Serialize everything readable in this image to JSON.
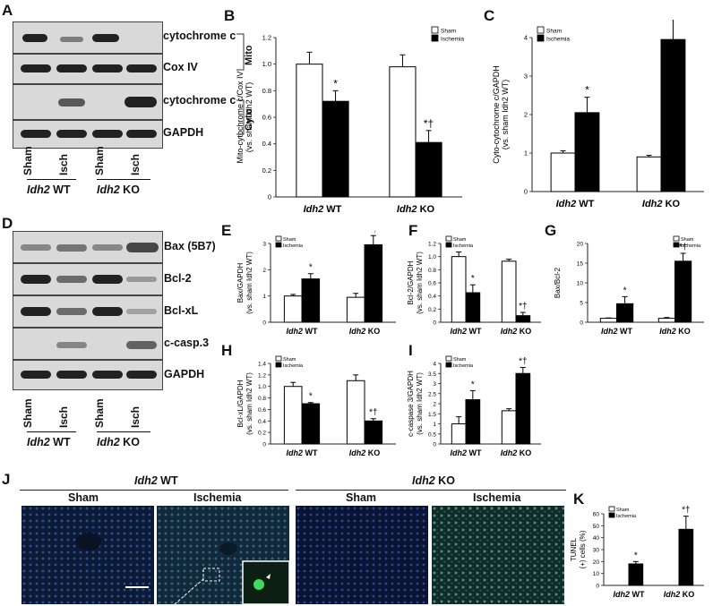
{
  "panels": {
    "A": "A",
    "B": "B",
    "C": "C",
    "D": "D",
    "E": "E",
    "F": "F",
    "G": "G",
    "H": "H",
    "I": "I",
    "J": "J",
    "K": "K"
  },
  "blot_a": {
    "rows": [
      "cytochrome c",
      "Cox IV",
      "cytochrome c",
      "GAPDH"
    ],
    "brackets": [
      "Mito",
      "Cyto"
    ],
    "lanes": [
      "Sham",
      "Isch",
      "Sham",
      "Isch"
    ],
    "groups": [
      "Idh2 WT",
      "Idh2 KO"
    ]
  },
  "blot_d": {
    "rows": [
      "Bax (5B7)",
      "Bcl-2",
      "Bcl-xL",
      "c-casp.3",
      "GAPDH"
    ],
    "lanes": [
      "Sham",
      "Isch",
      "Sham",
      "Isch"
    ],
    "groups": [
      "Idh2 WT",
      "Idh2 KO"
    ]
  },
  "micro": {
    "group_titles": [
      "Idh2 WT",
      "Idh2 KO"
    ],
    "columns": [
      "Sham",
      "Ischemia",
      "Sham",
      "Ischemia"
    ]
  },
  "chart_data": [
    {
      "panel": "B",
      "type": "bar",
      "categories": [
        "Idh2 WT",
        "Idh2 KO"
      ],
      "series": [
        {
          "name": "Sham",
          "values": [
            1.0,
            0.98
          ],
          "err": [
            0.09,
            0.09
          ]
        },
        {
          "name": "Ischemia",
          "values": [
            0.72,
            0.41
          ],
          "err": [
            0.08,
            0.09
          ]
        }
      ],
      "ylabel": "Mito-cytochrome c/Cox IV (vs. sham Idh2 WT)",
      "ylim": [
        0,
        1.2
      ],
      "yticks": [
        0,
        0.2,
        0.4,
        0.6,
        0.8,
        1.0,
        1.2
      ],
      "annotations": [
        "*",
        "*†"
      ],
      "legend": "top-right"
    },
    {
      "panel": "C",
      "type": "bar",
      "categories": [
        "Idh2 WT",
        "Idh2 KO"
      ],
      "series": [
        {
          "name": "Sham",
          "values": [
            1.0,
            0.9
          ],
          "err": [
            0.06,
            0.04
          ]
        },
        {
          "name": "Ischemia",
          "values": [
            2.05,
            3.95
          ],
          "err": [
            0.4,
            0.55
          ]
        }
      ],
      "ylabel": "Cyto-cytochrome c/GAPDH (vs. sham Idh2 WT)",
      "ylim": [
        0,
        4
      ],
      "yticks": [
        0,
        1,
        2,
        3,
        4
      ],
      "annotations": [
        "*",
        "*†"
      ],
      "legend": "top-left"
    },
    {
      "panel": "E",
      "type": "bar",
      "categories": [
        "Idh2 WT",
        "Idh2 KO"
      ],
      "series": [
        {
          "name": "Sham",
          "values": [
            1.0,
            0.95
          ],
          "err": [
            0.06,
            0.15
          ]
        },
        {
          "name": "Ischemia",
          "values": [
            1.65,
            2.95
          ],
          "err": [
            0.2,
            0.35
          ]
        }
      ],
      "ylabel": "Bax/GAPDH (vs. sham Idh2 WT)",
      "ylim": [
        0,
        3
      ],
      "yticks": [
        0,
        1,
        2,
        3
      ],
      "annotations": [
        "*",
        "*†"
      ],
      "legend": "top-left"
    },
    {
      "panel": "F",
      "type": "bar",
      "categories": [
        "Idh2 WT",
        "Idh2 KO"
      ],
      "series": [
        {
          "name": "Sham",
          "values": [
            1.0,
            0.93
          ],
          "err": [
            0.07,
            0.03
          ]
        },
        {
          "name": "Ischemia",
          "values": [
            0.45,
            0.1
          ],
          "err": [
            0.12,
            0.05
          ]
        }
      ],
      "ylabel": "Bcl-2/GAPDH (vs. sham Idh2 WT)",
      "ylim": [
        0,
        1.2
      ],
      "yticks": [
        0,
        0.2,
        0.4,
        0.6,
        0.8,
        1.0,
        1.2
      ],
      "annotations": [
        "*",
        "*†"
      ],
      "legend": "top-left"
    },
    {
      "panel": "G",
      "type": "bar",
      "categories": [
        "Idh2 WT",
        "Idh2 KO"
      ],
      "series": [
        {
          "name": "Sham",
          "values": [
            1.0,
            1.0
          ],
          "err": [
            0.1,
            0.2
          ]
        },
        {
          "name": "Ischemia",
          "values": [
            4.7,
            15.5
          ],
          "err": [
            1.8,
            2.0
          ]
        }
      ],
      "ylabel": "Bax/Bcl-2",
      "ylim": [
        0,
        20
      ],
      "yticks": [
        0,
        5,
        10,
        15,
        20
      ],
      "annotations": [
        "*",
        "*†"
      ],
      "legend": "top-right"
    },
    {
      "panel": "H",
      "type": "bar",
      "categories": [
        "Idh2 WT",
        "Idh2 KO"
      ],
      "series": [
        {
          "name": "Sham",
          "values": [
            1.0,
            1.1
          ],
          "err": [
            0.07,
            0.1
          ]
        },
        {
          "name": "Ischemia",
          "values": [
            0.7,
            0.4
          ],
          "err": [
            0.02,
            0.04
          ]
        }
      ],
      "ylabel": "Bcl-xL/GAPDH (vs. sham Idh2 WT)",
      "ylim": [
        0,
        1.4
      ],
      "yticks": [
        0,
        0.2,
        0.4,
        0.6,
        0.8,
        1.0,
        1.2,
        1.4
      ],
      "annotations": [
        "*",
        "*†"
      ],
      "legend": "top-left"
    },
    {
      "panel": "I",
      "type": "bar",
      "categories": [
        "Idh2 WT",
        "Idh2 KO"
      ],
      "series": [
        {
          "name": "Sham",
          "values": [
            1.0,
            1.65
          ],
          "err": [
            0.35,
            0.1
          ]
        },
        {
          "name": "Ischemia",
          "values": [
            2.2,
            3.5
          ],
          "err": [
            0.45,
            0.3
          ]
        }
      ],
      "ylabel": "c-caspase 3/GAPDH (vs. sham Idh2 WT)",
      "ylim": [
        0,
        4
      ],
      "yticks": [
        0,
        0.5,
        1,
        1.5,
        2,
        2.5,
        3,
        3.5,
        4
      ],
      "annotations": [
        "*",
        "*†"
      ],
      "legend": "top-left"
    },
    {
      "panel": "K",
      "type": "bar",
      "categories": [
        "Idh2 WT",
        "Idh2 KO"
      ],
      "series": [
        {
          "name": "Sham",
          "values": [
            0,
            0
          ],
          "err": [
            0,
            0
          ]
        },
        {
          "name": "Ischemia",
          "values": [
            18,
            47
          ],
          "err": [
            2,
            11
          ]
        }
      ],
      "ylabel": "TUNEL (+) cells (%)",
      "ylim": [
        0,
        60
      ],
      "yticks": [
        0,
        10,
        20,
        30,
        40,
        50,
        60
      ],
      "annotations": [
        "*",
        "*†"
      ],
      "legend": "top-left"
    }
  ]
}
